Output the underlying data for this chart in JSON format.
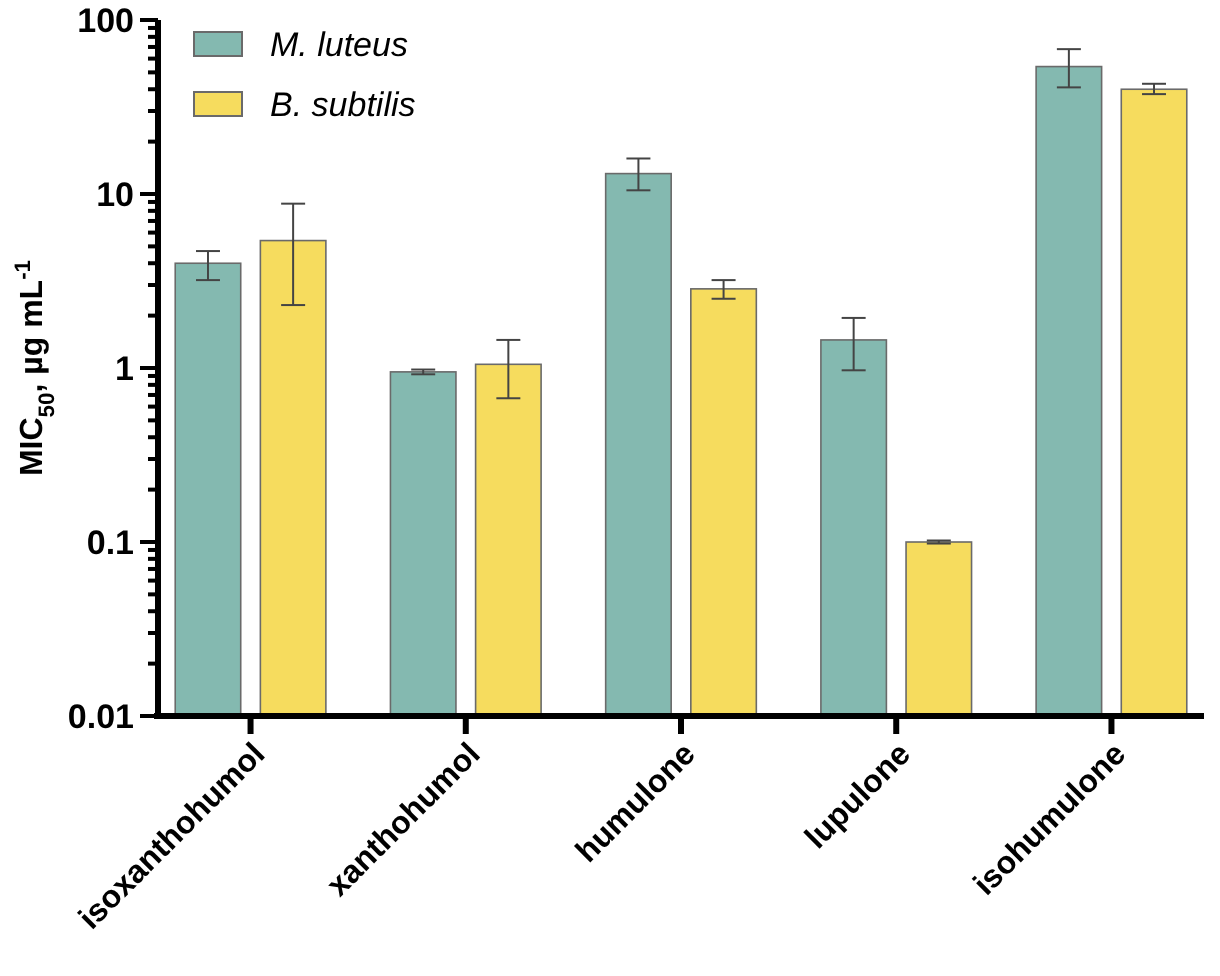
{
  "chart_data": {
    "type": "bar",
    "ylabel": "MIC$_{50}$, µg mL$^{-1}$",
    "log": true,
    "categories": [
      "isoxanthohumol",
      "xanthohumol",
      "humulone",
      "lupulone",
      "isohumulone"
    ],
    "series": [
      {
        "name": "M. luteus",
        "color": "#84b9b0",
        "values": [
          4.0,
          0.95,
          13.1,
          1.45,
          54
        ],
        "errors": [
          [
            3.2,
            4.7
          ],
          [
            0.92,
            0.98
          ],
          [
            10.5,
            16
          ],
          [
            0.97,
            1.94
          ],
          [
            41,
            68
          ]
        ]
      },
      {
        "name": "B. subtilis",
        "color": "#f6dc5e",
        "values": [
          5.4,
          1.05,
          2.85,
          0.1,
          40
        ],
        "errors": [
          [
            2.3,
            8.8
          ],
          [
            0.67,
            1.45
          ],
          [
            2.5,
            3.2
          ],
          [
            0.098,
            0.102
          ],
          [
            37.5,
            43
          ]
        ]
      }
    ],
    "ylim": [
      0.01,
      100
    ],
    "yticks": [
      0.01,
      {
        "value": 0.02,
        "label": null
      },
      {
        "value": 0.03,
        "label": null
      },
      {
        "value": 0.04,
        "label": null
      },
      {
        "value": 0.05,
        "label": null
      },
      {
        "value": 0.06,
        "label": null
      },
      {
        "value": 0.07,
        "label": null
      },
      {
        "value": 0.08,
        "label": null
      },
      {
        "value": 0.09,
        "label": null
      },
      0.1,
      {
        "value": 0.2,
        "label": null
      },
      {
        "value": 0.3,
        "label": null
      },
      {
        "value": 0.4,
        "label": null
      },
      {
        "value": 0.5,
        "label": null
      },
      {
        "value": 0.6,
        "label": null
      },
      {
        "value": 0.7,
        "label": null
      },
      {
        "value": 0.8,
        "label": null
      },
      {
        "value": 0.9,
        "label": null
      },
      1,
      {
        "value": 2,
        "label": null
      },
      {
        "value": 3,
        "label": null
      },
      {
        "value": 4,
        "label": null
      },
      {
        "value": 5,
        "label": null
      },
      {
        "value": 6,
        "label": null
      },
      {
        "value": 7,
        "label": null
      },
      {
        "value": 8,
        "label": null
      },
      {
        "value": 9,
        "label": null
      },
      10,
      {
        "value": 20,
        "label": null
      },
      {
        "value": 30,
        "label": null
      },
      {
        "value": 40,
        "label": null
      },
      {
        "value": 50,
        "label": null
      },
      {
        "value": 60,
        "label": null
      },
      {
        "value": 70,
        "label": null
      },
      {
        "value": 80,
        "label": null
      },
      {
        "value": 90,
        "label": null
      },
      100
    ],
    "legend": "top left",
    "grid": false
  }
}
